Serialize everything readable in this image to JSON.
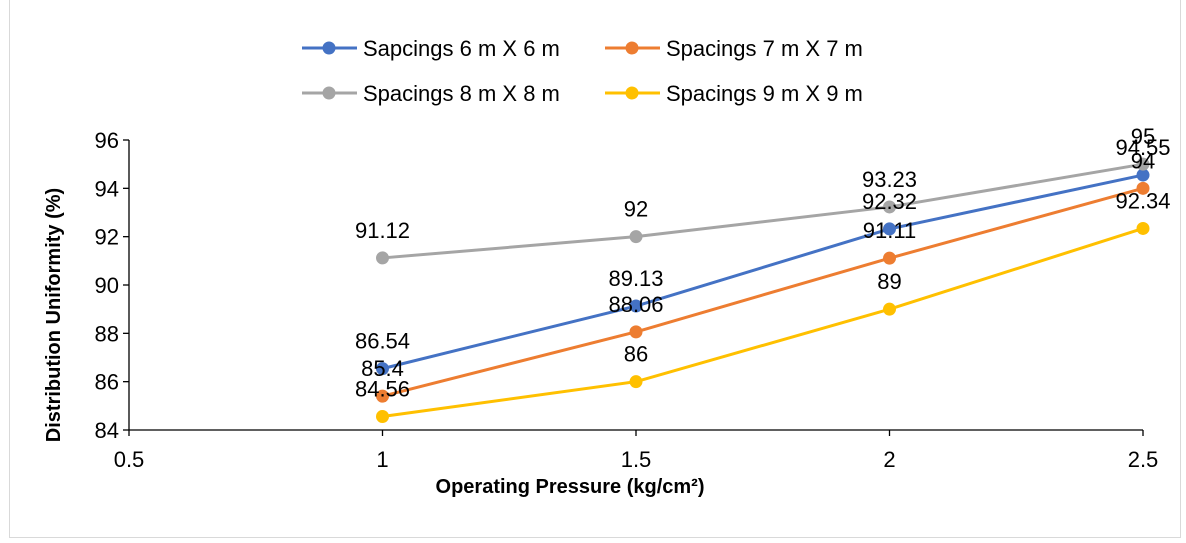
{
  "chart_data": {
    "type": "line",
    "title": "",
    "xlabel": "Operating Pressure (kg/cm²)",
    "ylabel": "Distribution Uniformity (%)",
    "xlim": [
      0.5,
      2.5
    ],
    "ylim": [
      84,
      96
    ],
    "x_ticks": [
      "0.5",
      "1",
      "1.5",
      "2",
      "2.5"
    ],
    "y_ticks": [
      "84",
      "86",
      "88",
      "90",
      "92",
      "94",
      "96"
    ],
    "grid": false,
    "legend_position": "top",
    "x": [
      1,
      1.5,
      2,
      2.5
    ],
    "series": [
      {
        "name": "Sapcings 6 m X 6 m",
        "color": "#4472c4",
        "values": [
          86.54,
          89.13,
          92.32,
          94.55
        ],
        "labels": [
          "86.54",
          "89.13",
          "92.32",
          "94.55"
        ]
      },
      {
        "name": "Spacings 7 m X 7 m",
        "color": "#ed7d31",
        "values": [
          85.4,
          88.06,
          91.11,
          94
        ],
        "labels": [
          "85.4",
          "88.06",
          "91.11",
          "94"
        ]
      },
      {
        "name": "Spacings 8 m X 8 m",
        "color": "#a5a5a5",
        "values": [
          91.12,
          92,
          93.23,
          95
        ],
        "labels": [
          "91.12",
          "92",
          "93.23",
          "95"
        ]
      },
      {
        "name": "Spacings 9 m X 9 m",
        "color": "#ffc000",
        "values": [
          84.56,
          86,
          89,
          92.34
        ],
        "labels": [
          "84.56",
          "86",
          "89",
          "92.34"
        ]
      }
    ]
  }
}
